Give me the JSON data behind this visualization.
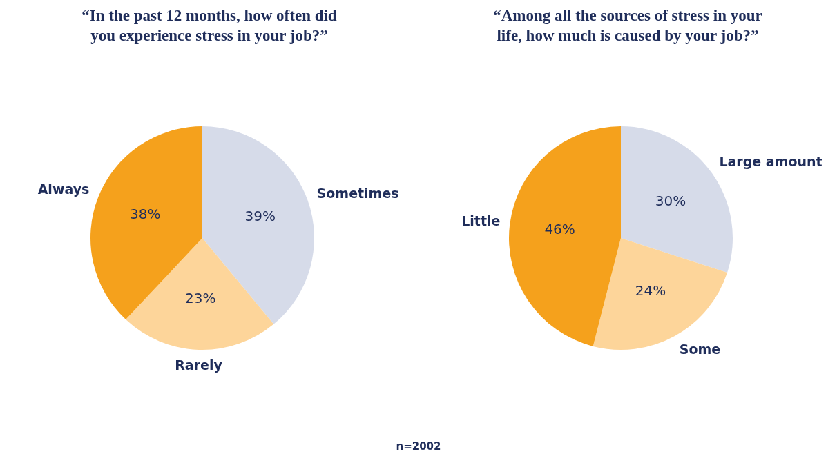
{
  "chart_data": [
    {
      "type": "pie",
      "title": "“In the past 12 months, how often did you experience stress in your job?”",
      "categories": [
        "Sometimes",
        "Rarely",
        "Always"
      ],
      "values": [
        39,
        23,
        38
      ],
      "colors": [
        "#d6dbe9",
        "#fdd59a",
        "#f5a11c"
      ],
      "value_labels": [
        "39%",
        "23%",
        "38%"
      ],
      "legend": false,
      "annotations": [
        "n=2002"
      ]
    },
    {
      "type": "pie",
      "title": "“Among all the sources of stress in your life, how much is caused by your job?”",
      "categories": [
        "Large amount",
        "Some",
        "Little"
      ],
      "values": [
        30,
        24,
        46
      ],
      "colors": [
        "#d6dbe9",
        "#fdd59a",
        "#f5a11c"
      ],
      "value_labels": [
        "30%",
        "24%",
        "46%"
      ],
      "legend": false
    }
  ]
}
